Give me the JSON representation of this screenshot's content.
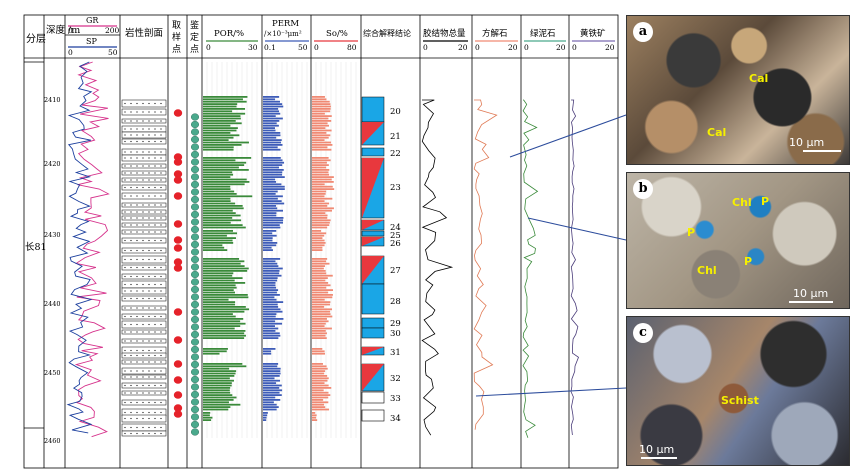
{
  "headers": {
    "layer": "分层",
    "depth": "深度\n/m",
    "gr": "GR",
    "gr_range": [
      "0",
      "200"
    ],
    "sp": "SP",
    "sp_range": [
      "0",
      "50"
    ],
    "lith": "岩性剖面",
    "sample": "取样点",
    "ident": "鉴定点",
    "por": "POR/%",
    "por_range": [
      "0",
      "30"
    ],
    "perm": "PERM",
    "perm_unit": "/×10⁻³μm²",
    "perm_range": [
      "0.1",
      "50"
    ],
    "so": "So/%",
    "so_range": [
      "0",
      "80"
    ],
    "interp": "综合解释结论",
    "cement": "胶结物总量",
    "cement_range": [
      "0",
      "20"
    ],
    "calcite": "方解石",
    "calcite_range": [
      "0",
      "20"
    ],
    "chlorite": "绿泥石",
    "chlorite_range": [
      "0",
      "20"
    ],
    "pyrite": "黄铁矿",
    "pyrite_range": [
      "0",
      "20"
    ]
  },
  "layer_name": "长81",
  "depth_ticks": [
    "2410",
    "2420",
    "2430",
    "2440",
    "2450",
    "2460"
  ],
  "interp_numbers": [
    "20",
    "21",
    "22",
    "23",
    "24",
    "25",
    "26",
    "27",
    "28",
    "29",
    "30",
    "31",
    "32",
    "33",
    "34"
  ],
  "photos": [
    {
      "tag": "a",
      "labels": [
        "Cal",
        "Cal"
      ],
      "scale": "10 μm"
    },
    {
      "tag": "b",
      "labels": [
        "Chl",
        "P",
        "P",
        "Chl",
        "P"
      ],
      "scale": "10 μm"
    },
    {
      "tag": "c",
      "labels": [
        "Schist"
      ],
      "scale": "10 μm"
    }
  ],
  "colors": {
    "gr": "#d6338c",
    "sp": "#1c3f9e",
    "por": "#3a8a3a",
    "perm": "#3e5cb8",
    "so": "#f08a74",
    "oil": "#e8383d",
    "water": "#1aa6e6",
    "ident_dot": "#4aa98c",
    "sample_dot": "#e5222a",
    "callout": "#2c4c9c"
  }
}
